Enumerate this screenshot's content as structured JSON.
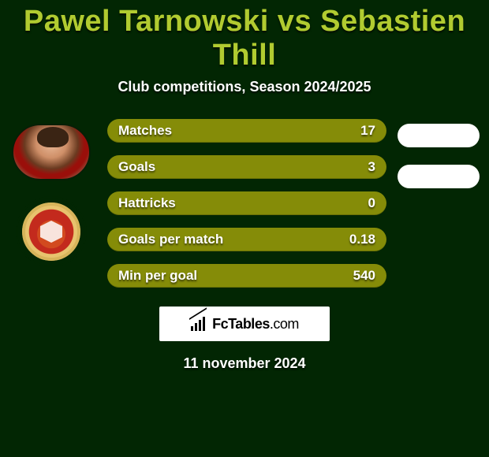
{
  "header": {
    "title": "Pawel Tarnowski vs Sebastien Thill",
    "subtitle": "Club competitions, Season 2024/2025"
  },
  "stats": {
    "bar_color": "#858c08",
    "text_color": "#ffffff",
    "items": [
      {
        "label": "Matches",
        "value": "17"
      },
      {
        "label": "Goals",
        "value": "3"
      },
      {
        "label": "Hattricks",
        "value": "0"
      },
      {
        "label": "Goals per match",
        "value": "0.18"
      },
      {
        "label": "Min per goal",
        "value": "540"
      }
    ]
  },
  "right_pills_count": 2,
  "logo": {
    "brand_bold": "FcTables",
    "brand_light": ".com"
  },
  "date": "11 november 2024",
  "colors": {
    "background": "#022603",
    "accent": "#b1cb30",
    "pill": "#ffffff"
  }
}
